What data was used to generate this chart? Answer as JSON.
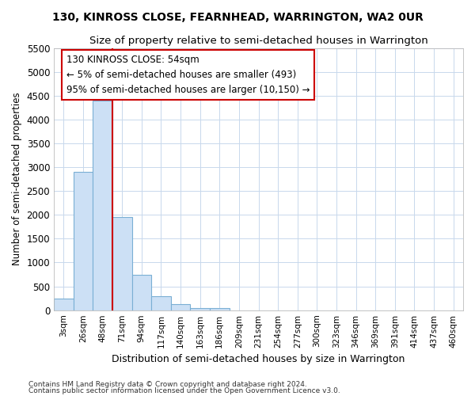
{
  "title": "130, KINROSS CLOSE, FEARNHEAD, WARRINGTON, WA2 0UR",
  "subtitle": "Size of property relative to semi-detached houses in Warrington",
  "xlabel": "Distribution of semi-detached houses by size in Warrington",
  "ylabel": "Number of semi-detached properties",
  "footer1": "Contains HM Land Registry data © Crown copyright and database right 2024.",
  "footer2": "Contains public sector information licensed under the Open Government Licence v3.0.",
  "annotation_line1": "130 KINROSS CLOSE: 54sqm",
  "annotation_line2": "← 5% of semi-detached houses are smaller (493)",
  "annotation_line3": "95% of semi-detached houses are larger (10,150) →",
  "bar_color": "#cce0f5",
  "bar_edge_color": "#7aafd4",
  "red_line_color": "#cc0000",
  "annotation_box_color": "#cc0000",
  "categories": [
    "3sqm",
    "26sqm",
    "48sqm",
    "71sqm",
    "94sqm",
    "117sqm",
    "140sqm",
    "163sqm",
    "186sqm",
    "209sqm",
    "231sqm",
    "254sqm",
    "277sqm",
    "300sqm",
    "323sqm",
    "346sqm",
    "369sqm",
    "391sqm",
    "414sqm",
    "437sqm",
    "460sqm"
  ],
  "bar_values": [
    250,
    2900,
    4400,
    1950,
    750,
    300,
    130,
    50,
    50,
    0,
    0,
    0,
    0,
    0,
    0,
    0,
    0,
    0,
    0,
    0,
    0
  ],
  "ylim": [
    0,
    5500
  ],
  "yticks": [
    0,
    500,
    1000,
    1500,
    2000,
    2500,
    3000,
    3500,
    4000,
    4500,
    5000,
    5500
  ],
  "red_line_x": 2.5,
  "figsize": [
    6.0,
    5.0
  ],
  "dpi": 100
}
